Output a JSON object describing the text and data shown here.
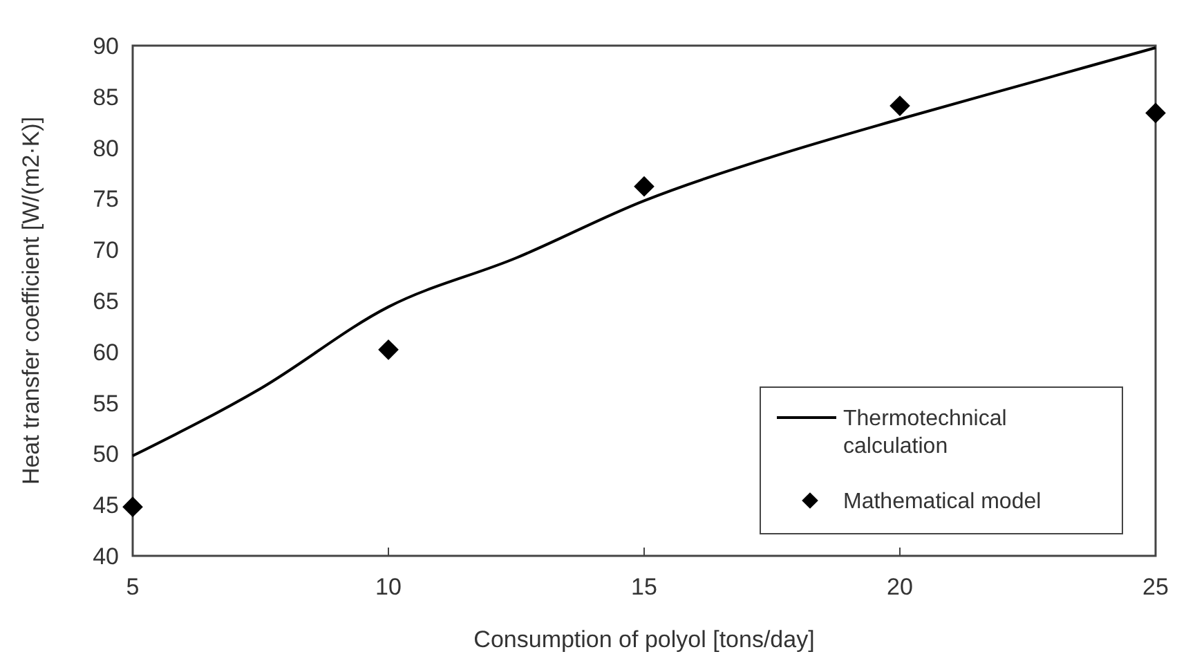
{
  "chart_data": {
    "type": "line",
    "xlabel": "Consumption of polyol [tons/day]",
    "ylabel": "Heat transfer coefficient [W/(m2·K)]",
    "xlim": [
      5,
      25
    ],
    "xticks": [
      5,
      10,
      15,
      20,
      25
    ],
    "ylim": [
      40,
      90
    ],
    "yticks": [
      40,
      45,
      50,
      55,
      60,
      65,
      70,
      75,
      80,
      85,
      90
    ],
    "grid": false,
    "legend": "bottom right",
    "series": [
      {
        "name": "Thermotechnical calculation",
        "color": "#000000",
        "marker": "none",
        "line_style": "solid",
        "x": [
          5,
          7.5,
          10,
          12.5,
          15,
          17.5,
          20,
          22.5,
          25
        ],
        "values": [
          49.8,
          56.4,
          64.4,
          69.2,
          74.8,
          79.1,
          82.8,
          86.3,
          89.8
        ]
      },
      {
        "name": "Mathematical model",
        "type": "scatter",
        "color": "#000000",
        "marker": "diamond",
        "x": [
          5,
          10,
          15,
          20,
          25
        ],
        "values": [
          44.8,
          60.2,
          76.2,
          84.1,
          83.4
        ]
      }
    ]
  }
}
